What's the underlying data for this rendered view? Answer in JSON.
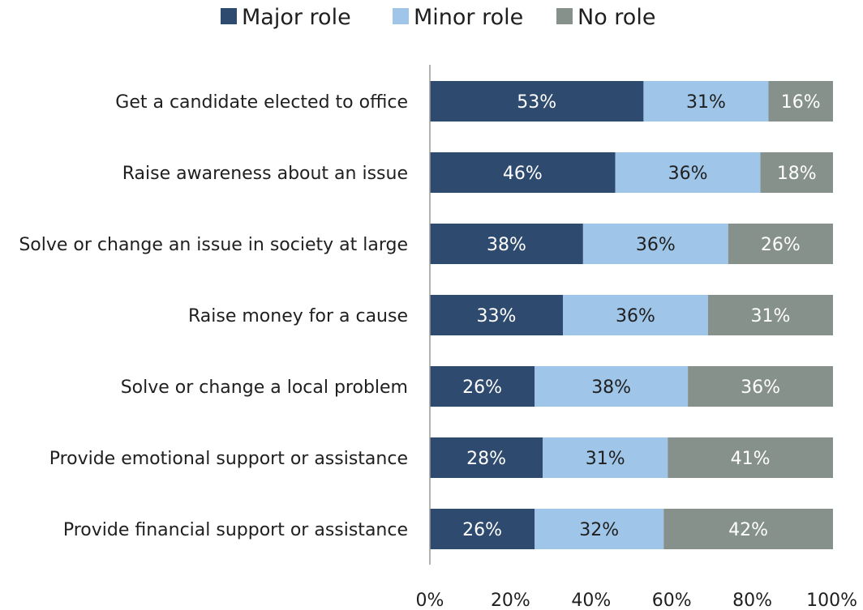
{
  "chart_data": {
    "type": "bar",
    "orientation": "horizontal",
    "stacked": true,
    "title": "",
    "xlabel": "",
    "ylabel": "",
    "xlim": [
      0,
      100
    ],
    "x_ticks": [
      "0%",
      "20%",
      "40%",
      "60%",
      "80%",
      "100%"
    ],
    "legend_placement": "top",
    "grid": false,
    "categories": [
      "Get a candidate elected to office",
      "Raise awareness about an issue",
      "Solve or change an issue in society at large",
      "Raise money for a cause",
      "Solve or change a local problem",
      "Provide emotional support or assistance",
      "Provide financial support or assistance"
    ],
    "series": [
      {
        "name": "Major role",
        "color": "#2e4a6e",
        "label_color": "#ffffff",
        "values": [
          53,
          46,
          38,
          33,
          26,
          28,
          26
        ],
        "labels": [
          "53%",
          "46%",
          "38%",
          "33%",
          "26%",
          "28%",
          "26%"
        ]
      },
      {
        "name": "Minor role",
        "color": "#9fc5e8",
        "label_color": "#1f1f1f",
        "values": [
          31,
          36,
          36,
          36,
          38,
          31,
          32
        ],
        "labels": [
          "31%",
          "36%",
          "36%",
          "36%",
          "38%",
          "31%",
          "32%"
        ]
      },
      {
        "name": "No role",
        "color": "#87918c",
        "label_color": "#ffffff",
        "values": [
          16,
          18,
          26,
          31,
          36,
          41,
          42
        ],
        "labels": [
          "16%",
          "18%",
          "26%",
          "31%",
          "36%",
          "41%",
          "42%"
        ]
      }
    ]
  }
}
